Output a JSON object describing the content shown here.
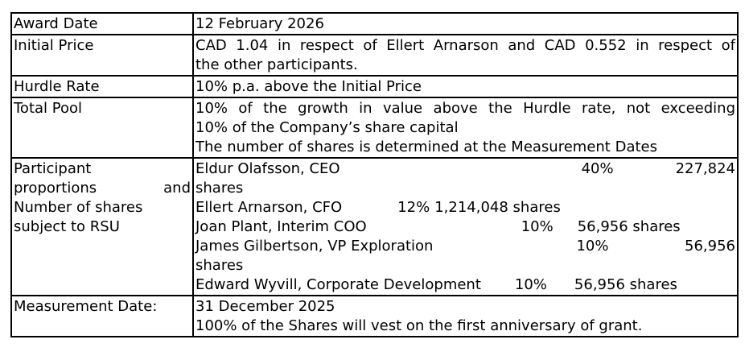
{
  "rows": [
    {
      "label": "Award Date",
      "value": "12 February 2026"
    },
    {
      "label": "Initial Price",
      "value_line1": "CAD 1.04 in respect of Ellert Arnarson and CAD 0.552 in respect of",
      "value_line2": "the other participants."
    },
    {
      "label": "Hurdle Rate",
      "value": "10% p.a. above the Initial Price"
    },
    {
      "label": "Total Pool",
      "value_line1": "10% of the growth in value above the Hurdle rate, not exceeding",
      "value_line2": "10% of the Company’s share capital",
      "value_line3": "The number of shares is determined at the Measurement Dates"
    },
    {
      "label_line1": "Participant",
      "label_line2a": "proportions",
      "label_line2b": "and",
      "label_line3": "Number of shares",
      "label_line4": "subject to RSU",
      "participants": [
        {
          "name": "Eldur Olafsson, CEO",
          "pct": "40%",
          "shares": "227,824",
          "suffix": "shares"
        },
        {
          "name": "Ellert Arnarson, CFO",
          "pct": "12%",
          "shares": "1,214,048 shares"
        },
        {
          "name": "Joan Plant, Interim COO",
          "pct": "10%",
          "shares": "56,956 shares"
        },
        {
          "name": "James Gilbertson, VP Exploration",
          "pct": "10%",
          "shares": "56,956",
          "suffix": "shares"
        },
        {
          "name": "Edward Wyvill, Corporate Development",
          "pct": "10%",
          "shares": "56,956 shares"
        }
      ]
    },
    {
      "label": "Measurement Date:",
      "value_line1": "31 December 2025",
      "value_line2": "100% of the Shares will vest on the first anniversary of grant."
    }
  ]
}
